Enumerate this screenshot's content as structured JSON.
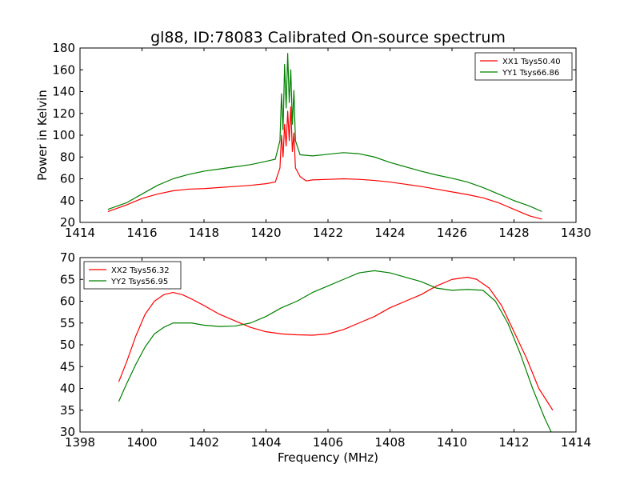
{
  "title": "gl88, ID:78083 Calibrated On-source spectrum",
  "chart_data": [
    {
      "type": "line",
      "title": "gl88, ID:78083 Calibrated On-source spectrum",
      "xlabel": "",
      "ylabel": "Power in Kelvin",
      "xlim": [
        1414,
        1430
      ],
      "ylim": [
        20,
        180
      ],
      "xticks": [
        1414,
        1416,
        1418,
        1420,
        1422,
        1424,
        1426,
        1428,
        1430
      ],
      "yticks": [
        20,
        40,
        60,
        80,
        100,
        120,
        140,
        160,
        180
      ],
      "legend_position": "top-right",
      "series": [
        {
          "name": "XX1 Tsys50.40",
          "color": "#ff0000",
          "points": [
            [
              1414.9,
              30
            ],
            [
              1415.5,
              36
            ],
            [
              1416.0,
              42
            ],
            [
              1416.5,
              46
            ],
            [
              1417.0,
              49
            ],
            [
              1417.5,
              50.5
            ],
            [
              1418.0,
              51
            ],
            [
              1418.5,
              52
            ],
            [
              1419.0,
              53
            ],
            [
              1419.5,
              54
            ],
            [
              1420.0,
              55.5
            ],
            [
              1420.3,
              57
            ],
            [
              1420.45,
              70
            ],
            [
              1420.5,
              100
            ],
            [
              1420.55,
              80
            ],
            [
              1420.6,
              110
            ],
            [
              1420.65,
              90
            ],
            [
              1420.7,
              122
            ],
            [
              1420.75,
              95
            ],
            [
              1420.8,
              126
            ],
            [
              1420.85,
              85
            ],
            [
              1420.9,
              102
            ],
            [
              1420.95,
              70
            ],
            [
              1421.1,
              62
            ],
            [
              1421.3,
              58
            ],
            [
              1421.5,
              59
            ],
            [
              1422.0,
              59.5
            ],
            [
              1422.5,
              60
            ],
            [
              1423.0,
              59.5
            ],
            [
              1423.5,
              58.5
            ],
            [
              1424.0,
              57
            ],
            [
              1424.5,
              55
            ],
            [
              1425.0,
              53
            ],
            [
              1425.5,
              50.5
            ],
            [
              1426.0,
              48
            ],
            [
              1426.5,
              45.5
            ],
            [
              1427.0,
              42.5
            ],
            [
              1427.5,
              38
            ],
            [
              1428.0,
              32
            ],
            [
              1428.5,
              26
            ],
            [
              1428.9,
              23
            ]
          ]
        },
        {
          "name": "YY1 Tsys66.86",
          "color": "#008000",
          "points": [
            [
              1414.9,
              32
            ],
            [
              1415.5,
              38
            ],
            [
              1416.0,
              46
            ],
            [
              1416.5,
              54
            ],
            [
              1417.0,
              60
            ],
            [
              1417.5,
              64
            ],
            [
              1418.0,
              67
            ],
            [
              1418.5,
              69
            ],
            [
              1419.0,
              71
            ],
            [
              1419.5,
              73
            ],
            [
              1420.0,
              76
            ],
            [
              1420.3,
              78
            ],
            [
              1420.45,
              95
            ],
            [
              1420.5,
              138
            ],
            [
              1420.55,
              105
            ],
            [
              1420.6,
              165
            ],
            [
              1420.65,
              125
            ],
            [
              1420.7,
              175
            ],
            [
              1420.75,
              130
            ],
            [
              1420.8,
              160
            ],
            [
              1420.85,
              110
            ],
            [
              1420.9,
              141
            ],
            [
              1420.95,
              95
            ],
            [
              1421.1,
              82
            ],
            [
              1421.5,
              81
            ],
            [
              1422.0,
              82.5
            ],
            [
              1422.5,
              84
            ],
            [
              1423.0,
              83
            ],
            [
              1423.5,
              80
            ],
            [
              1424.0,
              75
            ],
            [
              1424.5,
              71
            ],
            [
              1425.0,
              67
            ],
            [
              1425.5,
              63.5
            ],
            [
              1426.0,
              60.5
            ],
            [
              1426.5,
              57
            ],
            [
              1427.0,
              52
            ],
            [
              1427.5,
              46
            ],
            [
              1428.0,
              40
            ],
            [
              1428.5,
              35
            ],
            [
              1428.9,
              30
            ]
          ]
        }
      ]
    },
    {
      "type": "line",
      "title": "",
      "xlabel": "Frequency (MHz)",
      "ylabel": "",
      "xlim": [
        1398,
        1414
      ],
      "ylim": [
        30,
        70
      ],
      "xticks": [
        1398,
        1400,
        1402,
        1404,
        1406,
        1408,
        1410,
        1412,
        1414
      ],
      "yticks": [
        30,
        35,
        40,
        45,
        50,
        55,
        60,
        65,
        70
      ],
      "legend_position": "top-left",
      "series": [
        {
          "name": "XX2 Tsys56.32",
          "color": "#ff0000",
          "points": [
            [
              1399.25,
              41.5
            ],
            [
              1399.5,
              46
            ],
            [
              1399.8,
              52
            ],
            [
              1400.1,
              57
            ],
            [
              1400.4,
              60
            ],
            [
              1400.7,
              61.5
            ],
            [
              1401.0,
              62
            ],
            [
              1401.3,
              61.5
            ],
            [
              1401.6,
              60.5
            ],
            [
              1402.0,
              59
            ],
            [
              1402.5,
              57
            ],
            [
              1403.0,
              55.5
            ],
            [
              1403.5,
              54
            ],
            [
              1404.0,
              53
            ],
            [
              1404.5,
              52.5
            ],
            [
              1405.0,
              52.3
            ],
            [
              1405.5,
              52.2
            ],
            [
              1406.0,
              52.5
            ],
            [
              1406.5,
              53.5
            ],
            [
              1407.0,
              55
            ],
            [
              1407.5,
              56.5
            ],
            [
              1408.0,
              58.5
            ],
            [
              1408.5,
              60
            ],
            [
              1409.0,
              61.5
            ],
            [
              1409.5,
              63.5
            ],
            [
              1410.0,
              65
            ],
            [
              1410.5,
              65.5
            ],
            [
              1410.8,
              65
            ],
            [
              1411.2,
              63
            ],
            [
              1411.6,
              59
            ],
            [
              1412.0,
              53
            ],
            [
              1412.4,
              47
            ],
            [
              1412.8,
              40
            ],
            [
              1413.25,
              35
            ]
          ]
        },
        {
          "name": "YY2 Tsys56.95",
          "color": "#008000",
          "points": [
            [
              1399.25,
              37
            ],
            [
              1399.5,
              41
            ],
            [
              1399.8,
              45.5
            ],
            [
              1400.1,
              49.5
            ],
            [
              1400.4,
              52.5
            ],
            [
              1400.7,
              54
            ],
            [
              1401.0,
              55
            ],
            [
              1401.3,
              55
            ],
            [
              1401.6,
              55
            ],
            [
              1402.0,
              54.5
            ],
            [
              1402.5,
              54.2
            ],
            [
              1403.0,
              54.3
            ],
            [
              1403.5,
              55
            ],
            [
              1404.0,
              56.5
            ],
            [
              1404.5,
              58.5
            ],
            [
              1405.0,
              60
            ],
            [
              1405.5,
              62
            ],
            [
              1406.0,
              63.5
            ],
            [
              1406.5,
              65
            ],
            [
              1407.0,
              66.5
            ],
            [
              1407.5,
              67
            ],
            [
              1408.0,
              66.5
            ],
            [
              1408.5,
              65.5
            ],
            [
              1409.0,
              64.5
            ],
            [
              1409.5,
              63
            ],
            [
              1410.0,
              62.5
            ],
            [
              1410.5,
              62.7
            ],
            [
              1411.0,
              62.5
            ],
            [
              1411.4,
              60
            ],
            [
              1411.8,
              55
            ],
            [
              1412.2,
              48
            ],
            [
              1412.6,
              40
            ],
            [
              1413.0,
              33
            ],
            [
              1413.2,
              30
            ]
          ]
        }
      ]
    }
  ]
}
